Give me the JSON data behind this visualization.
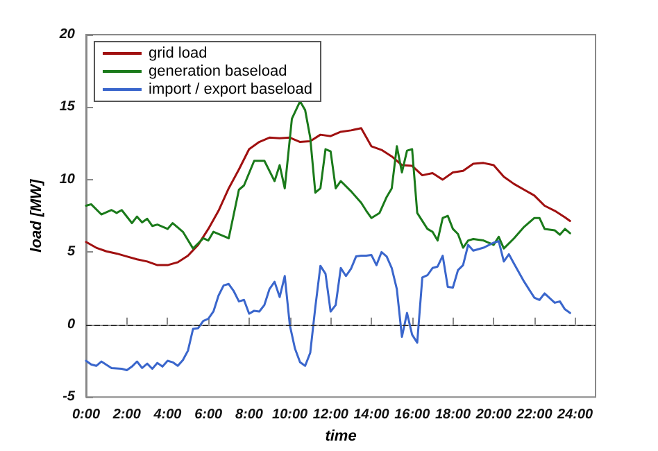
{
  "chart_data": {
    "type": "line",
    "xlabel": "time",
    "ylabel": "load [MW]",
    "xlim": [
      0,
      25
    ],
    "xticks": [
      {
        "value": 0,
        "label": "0:00"
      },
      {
        "value": 2,
        "label": "2:00"
      },
      {
        "value": 4,
        "label": "4:00"
      },
      {
        "value": 6,
        "label": "6:00"
      },
      {
        "value": 8,
        "label": "8:00"
      },
      {
        "value": 10,
        "label": "10:00"
      },
      {
        "value": 12,
        "label": "12:00"
      },
      {
        "value": 14,
        "label": "14:00"
      },
      {
        "value": 16,
        "label": "16:00"
      },
      {
        "value": 18,
        "label": "18:00"
      },
      {
        "value": 20,
        "label": "20:00"
      },
      {
        "value": 22,
        "label": "22:00"
      },
      {
        "value": 24,
        "label": "24:00"
      }
    ],
    "ylim": [
      -5,
      20
    ],
    "yticks": [
      -5,
      0,
      5,
      10,
      15,
      20
    ],
    "grid": false,
    "legend": "top left",
    "marker": "none",
    "line_style": "solid",
    "ref_lines": [
      {
        "axis": "y",
        "value": 0,
        "color": "#333333",
        "line_style": "dashed"
      }
    ],
    "series": [
      {
        "name": "grid load",
        "color": "#a01010",
        "x": [
          0,
          0.5,
          1,
          1.5,
          2,
          2.5,
          3,
          3.5,
          4,
          4.5,
          5,
          5.5,
          6,
          6.5,
          7,
          7.5,
          8,
          8.5,
          9,
          9.5,
          10,
          10.5,
          11,
          11.5,
          12,
          12.5,
          13,
          13.5,
          14,
          14.5,
          15,
          15.5,
          16,
          16.5,
          17,
          17.5,
          18,
          18.5,
          19,
          19.5,
          20,
          20.5,
          21,
          21.5,
          22,
          22.5,
          23,
          23.5,
          23.75
        ],
        "values": [
          5.7,
          5.3,
          5.05,
          4.9,
          4.7,
          4.5,
          4.35,
          4.1,
          4.1,
          4.3,
          4.75,
          5.5,
          6.6,
          7.85,
          9.4,
          10.7,
          12.1,
          12.6,
          12.9,
          12.85,
          12.9,
          12.6,
          12.65,
          13.1,
          13.0,
          13.3,
          13.4,
          13.55,
          12.3,
          12.05,
          11.6,
          11.0,
          10.95,
          10.3,
          10.45,
          10.0,
          10.5,
          10.6,
          11.1,
          11.15,
          11.0,
          10.2,
          9.7,
          9.3,
          8.9,
          8.2,
          7.85,
          7.4,
          7.15
        ]
      },
      {
        "name": "generation baseload",
        "color": "#1a7a1a",
        "x": [
          0,
          0.25,
          0.75,
          1.25,
          1.5,
          1.75,
          2.25,
          2.5,
          2.75,
          3,
          3.25,
          3.5,
          4,
          4.25,
          4.75,
          5.25,
          5.75,
          6,
          6.25,
          7,
          7.5,
          7.75,
          8.25,
          8.75,
          9.25,
          9.5,
          9.75,
          10.1,
          10.5,
          10.75,
          11,
          11.25,
          11.5,
          11.75,
          12,
          12.25,
          12.5,
          13,
          13.5,
          13.75,
          14,
          14.4,
          14.75,
          15,
          15.25,
          15.5,
          15.75,
          16,
          16.25,
          16.75,
          17,
          17.25,
          17.5,
          17.75,
          18,
          18.25,
          18.5,
          18.75,
          19,
          19.5,
          20,
          20.25,
          20.5,
          21,
          21.5,
          22,
          22.25,
          22.5,
          23,
          23.25,
          23.5,
          23.75
        ],
        "values": [
          8.2,
          8.3,
          7.6,
          7.9,
          7.7,
          7.9,
          7.0,
          7.45,
          7.05,
          7.3,
          6.8,
          6.9,
          6.6,
          7.0,
          6.4,
          5.25,
          5.95,
          5.8,
          6.4,
          5.95,
          9.3,
          9.6,
          11.3,
          11.3,
          9.9,
          11.0,
          9.4,
          14.2,
          15.4,
          14.8,
          12.9,
          9.1,
          9.4,
          12.1,
          11.95,
          9.4,
          9.9,
          9.2,
          8.4,
          7.85,
          7.35,
          7.7,
          8.8,
          9.4,
          12.3,
          10.5,
          12.0,
          12.1,
          7.7,
          6.6,
          6.4,
          5.8,
          7.35,
          7.5,
          6.6,
          6.25,
          5.3,
          5.8,
          5.9,
          5.8,
          5.5,
          6.05,
          5.25,
          5.95,
          6.75,
          7.35,
          7.35,
          6.6,
          6.5,
          6.2,
          6.6,
          6.3
        ]
      },
      {
        "name": "import / export baseload",
        "color": "#3a66cc",
        "x": [
          0,
          0.25,
          0.5,
          0.75,
          1.25,
          1.75,
          2,
          2.25,
          2.5,
          2.75,
          3,
          3.25,
          3.5,
          3.75,
          4,
          4.25,
          4.5,
          4.75,
          5,
          5.25,
          5.5,
          5.75,
          6,
          6.25,
          6.5,
          6.75,
          7,
          7.25,
          7.5,
          7.75,
          8,
          8.25,
          8.5,
          8.75,
          9,
          9.25,
          9.5,
          9.75,
          10,
          10.25,
          10.5,
          10.75,
          11,
          11.25,
          11.5,
          11.75,
          12,
          12.25,
          12.5,
          12.75,
          13,
          13.25,
          13.5,
          13.75,
          14,
          14.25,
          14.5,
          14.75,
          15,
          15.25,
          15.5,
          15.75,
          16,
          16.25,
          16.5,
          16.75,
          17,
          17.25,
          17.5,
          17.75,
          18,
          18.25,
          18.5,
          18.75,
          19,
          19.5,
          20,
          20.25,
          20.5,
          20.75,
          21,
          21.5,
          22,
          22.25,
          22.5,
          23,
          23.25,
          23.5,
          23.75
        ],
        "values": [
          -2.5,
          -2.75,
          -2.85,
          -2.55,
          -3.0,
          -3.05,
          -3.15,
          -2.9,
          -2.55,
          -3.0,
          -2.7,
          -3.05,
          -2.65,
          -2.9,
          -2.5,
          -2.6,
          -2.85,
          -2.45,
          -1.8,
          -0.3,
          -0.25,
          0.25,
          0.4,
          0.9,
          2.0,
          2.7,
          2.8,
          2.3,
          1.6,
          1.7,
          0.75,
          0.95,
          0.9,
          1.35,
          2.45,
          2.95,
          1.9,
          3.35,
          -0.05,
          -1.65,
          -2.6,
          -2.85,
          -1.95,
          1.2,
          4.05,
          3.5,
          0.9,
          1.35,
          3.9,
          3.35,
          3.85,
          4.7,
          4.75,
          4.75,
          4.8,
          4.1,
          5.0,
          4.7,
          3.9,
          2.45,
          -0.85,
          0.8,
          -0.7,
          -1.25,
          3.25,
          3.4,
          3.9,
          4.0,
          4.75,
          2.6,
          2.55,
          3.75,
          4.1,
          5.5,
          5.1,
          5.3,
          5.65,
          5.75,
          4.35,
          4.85,
          4.2,
          2.95,
          1.85,
          1.7,
          2.15,
          1.5,
          1.6,
          1.05,
          0.8
        ]
      }
    ]
  }
}
